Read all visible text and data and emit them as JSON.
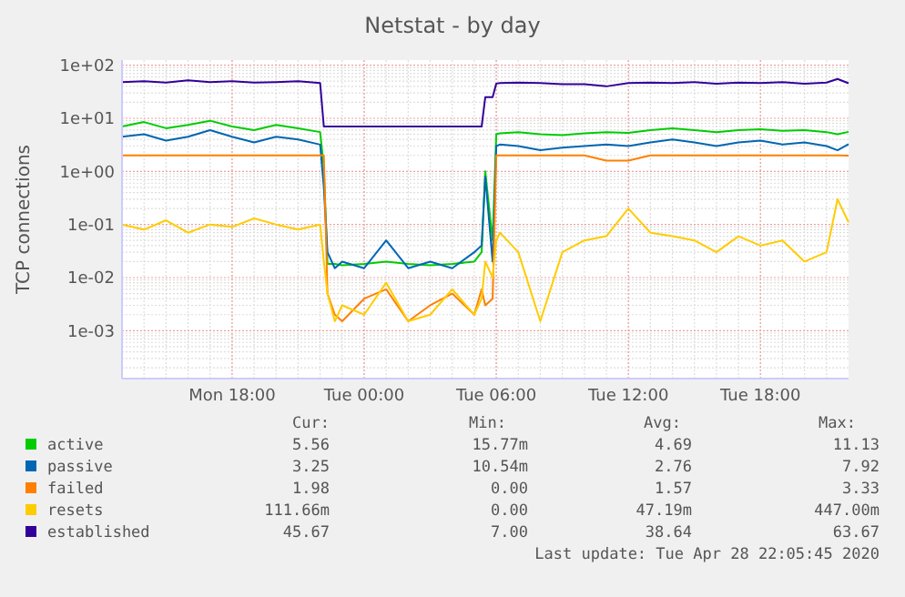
{
  "chart_data": {
    "type": "line",
    "title": "Netstat - by day",
    "ylabel": "TCP connections",
    "log": true,
    "grid": true,
    "legend": "bottom",
    "ylim": [
      0.000125,
      125
    ],
    "yticks": [
      {
        "value": 0.001,
        "label": "1e-03"
      },
      {
        "value": 0.01,
        "label": "1e-02"
      },
      {
        "value": 0.1,
        "label": "1e-01"
      },
      {
        "value": 1,
        "label": "1e+00"
      },
      {
        "value": 10,
        "label": "1e+01"
      },
      {
        "value": 100,
        "label": "1e+02"
      }
    ],
    "xlim": [
      "2020-04-27T13:00",
      "2020-04-28T22:00"
    ],
    "xticks": [
      {
        "value": "2020-04-27T18:00",
        "label": "Mon 18:00"
      },
      {
        "value": "2020-04-28T00:00",
        "label": "Tue 00:00"
      },
      {
        "value": "2020-04-28T06:00",
        "label": "Tue 06:00"
      },
      {
        "value": "2020-04-28T12:00",
        "label": "Tue 12:00"
      },
      {
        "value": "2020-04-28T18:00",
        "label": "Tue 18:00"
      }
    ],
    "x": [
      "2020-04-27T13:00",
      "2020-04-27T14:00",
      "2020-04-27T15:00",
      "2020-04-27T16:00",
      "2020-04-27T17:00",
      "2020-04-27T18:00",
      "2020-04-27T19:00",
      "2020-04-27T20:00",
      "2020-04-27T21:00",
      "2020-04-27T22:00",
      "2020-04-27T22:10",
      "2020-04-27T22:20",
      "2020-04-27T22:40",
      "2020-04-27T23:00",
      "2020-04-28T00:00",
      "2020-04-28T01:00",
      "2020-04-28T02:00",
      "2020-04-28T03:00",
      "2020-04-28T04:00",
      "2020-04-28T05:00",
      "2020-04-28T05:20",
      "2020-04-28T05:30",
      "2020-04-28T05:50",
      "2020-04-28T06:00",
      "2020-04-28T06:10",
      "2020-04-28T07:00",
      "2020-04-28T08:00",
      "2020-04-28T09:00",
      "2020-04-28T10:00",
      "2020-04-28T11:00",
      "2020-04-28T12:00",
      "2020-04-28T13:00",
      "2020-04-28T14:00",
      "2020-04-28T15:00",
      "2020-04-28T16:00",
      "2020-04-28T17:00",
      "2020-04-28T18:00",
      "2020-04-28T19:00",
      "2020-04-28T20:00",
      "2020-04-28T21:00",
      "2020-04-28T21:30",
      "2020-04-28T22:00"
    ],
    "series": [
      {
        "name": "active",
        "color": "#00cc00",
        "values": [
          7,
          8.5,
          6.5,
          7.5,
          9,
          7,
          6,
          7.5,
          6.5,
          5.5,
          1.2,
          0.018,
          0.018,
          0.017,
          0.018,
          0.02,
          0.018,
          0.017,
          0.018,
          0.02,
          0.03,
          1.0,
          0.05,
          5,
          5.2,
          5.5,
          5,
          4.8,
          5.2,
          5.5,
          5.3,
          6,
          6.5,
          6,
          5.5,
          6,
          6.2,
          5.8,
          6,
          5.5,
          5,
          5.56
        ]
      },
      {
        "name": "passive",
        "color": "#0066b3",
        "values": [
          4.5,
          5,
          3.8,
          4.5,
          6,
          4.5,
          3.5,
          4.5,
          4,
          3.2,
          0.5,
          0.03,
          0.015,
          0.02,
          0.015,
          0.05,
          0.015,
          0.02,
          0.015,
          0.03,
          0.04,
          0.8,
          0.02,
          3,
          3.2,
          3,
          2.5,
          2.8,
          3,
          3.2,
          3,
          3.5,
          4,
          3.5,
          3,
          3.5,
          3.8,
          3.2,
          3.5,
          3,
          2.5,
          3.25
        ]
      },
      {
        "name": "failed",
        "color": "#ff8000",
        "values": [
          2,
          2,
          2,
          2,
          2,
          2,
          2,
          2,
          2,
          2,
          2,
          0.005,
          0.002,
          0.0015,
          0.004,
          0.006,
          0.0015,
          0.003,
          0.005,
          0.002,
          0.006,
          0.003,
          0.004,
          2,
          2,
          2,
          2,
          2,
          2,
          1.6,
          1.6,
          2,
          2,
          2,
          2,
          2,
          2,
          2,
          2,
          2,
          2,
          1.98
        ]
      },
      {
        "name": "resets",
        "color": "#ffcc00",
        "values": [
          0.1,
          0.08,
          0.12,
          0.07,
          0.1,
          0.09,
          0.13,
          0.1,
          0.08,
          0.1,
          0.02,
          0.005,
          0.0015,
          0.003,
          0.002,
          0.008,
          0.0015,
          0.002,
          0.006,
          0.002,
          0.004,
          0.02,
          0.01,
          0.05,
          0.07,
          0.03,
          0.0015,
          0.03,
          0.05,
          0.06,
          0.2,
          0.07,
          0.06,
          0.05,
          0.03,
          0.06,
          0.04,
          0.05,
          0.02,
          0.03,
          0.3,
          0.11
        ]
      },
      {
        "name": "established",
        "color": "#330099",
        "values": [
          48,
          50,
          47,
          52,
          48,
          50,
          47,
          48,
          50,
          46,
          7,
          7,
          7,
          7,
          7,
          7,
          7,
          7,
          7,
          7,
          7,
          25,
          25,
          45,
          46,
          47,
          46,
          44,
          44,
          40,
          46,
          47,
          46,
          48,
          45,
          47,
          46,
          48,
          45,
          47,
          55,
          45.67
        ]
      }
    ],
    "annotations": [
      "Cur:",
      "Min:",
      "Avg:",
      "Max:",
      "5.56",
      "15.77m",
      "4.69",
      "11.13",
      "3.25",
      "10.54m",
      "2.76",
      "7.92",
      "1.98",
      "0.00",
      "1.57",
      "3.33",
      "111.66m",
      "0.00",
      "47.19m",
      "447.00m",
      "45.67",
      "7.00",
      "38.64",
      "63.67",
      "Last update: Tue Apr 28 22:05:45 2020"
    ]
  }
}
